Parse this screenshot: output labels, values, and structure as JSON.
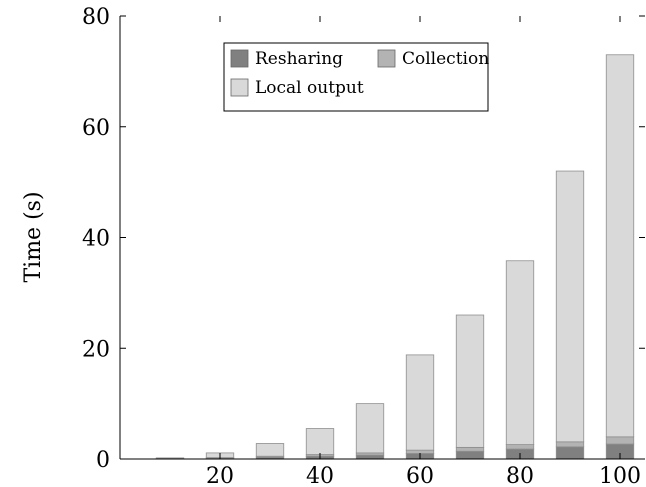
{
  "chart_data": {
    "type": "bar",
    "stacked": true,
    "title": "",
    "xlabel": "",
    "ylabel": "Time (s)",
    "x": [
      10,
      20,
      30,
      40,
      50,
      60,
      70,
      80,
      90,
      100
    ],
    "xticks": [
      20,
      40,
      60,
      80,
      100
    ],
    "xlim": [
      0,
      105
    ],
    "yticks": [
      0,
      20,
      40,
      60,
      80
    ],
    "ylim": [
      0,
      80
    ],
    "grid": false,
    "legend_position": "top",
    "series": [
      {
        "name": "Resharing",
        "color": "#808080",
        "values": [
          0.05,
          0.15,
          0.3,
          0.5,
          0.7,
          1.0,
          1.4,
          1.8,
          2.2,
          2.7
        ]
      },
      {
        "name": "Collection",
        "color": "#b3b3b3",
        "values": [
          0.05,
          0.1,
          0.2,
          0.3,
          0.4,
          0.6,
          0.7,
          0.8,
          0.9,
          1.3
        ]
      },
      {
        "name": "Local output",
        "color": "#d9d9d9",
        "values": [
          0.1,
          0.85,
          2.3,
          4.7,
          8.9,
          17.2,
          23.9,
          33.2,
          48.9,
          69.0
        ]
      }
    ]
  }
}
